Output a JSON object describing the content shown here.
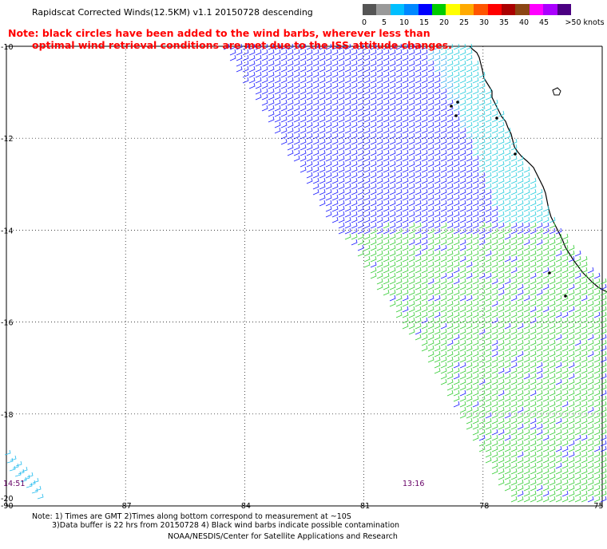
{
  "title": "Rapidscat Corrected Winds(12.5KM) v1.1 20150728 descending",
  "note_red": {
    "line1": "Note: black circles have been added to the wind barbs, wherever less than",
    "line2": "optimal wind retrieval conditions are met due to the ISS attitude changes."
  },
  "scale": {
    "labels": [
      "0",
      "5",
      "10",
      "15",
      "20",
      "25",
      "30",
      "35",
      "40",
      "45",
      ">50 knots"
    ],
    "colors": [
      "#555555",
      "#999999",
      "#00bfff",
      "#0088ff",
      "#0000ff",
      "#00cc00",
      "#ffff00",
      "#ffaa00",
      "#ff5500",
      "#ff0000",
      "#aa0000",
      "#8b4513",
      "#ff00ff",
      "#aa00ff",
      "#4b0082"
    ]
  },
  "axes": {
    "x_labels": [
      "-90",
      "-87",
      "-84",
      "-81",
      "-78",
      "-75"
    ],
    "y_labels": [
      "-10",
      "-12",
      "-14",
      "-16",
      "-18",
      "-20"
    ]
  },
  "times": [
    "14:51",
    "13:16"
  ],
  "footer": {
    "line1": "Note: 1) Times are GMT 2)Times along bottom correspond to measurement at ~10S",
    "line2": "3)Data buffer is 22 hrs from 20150728 4) Black wind barbs indicate possible contamination",
    "line3": "NOAA/NESDIS/Center for Satellite Applications and Research"
  }
}
